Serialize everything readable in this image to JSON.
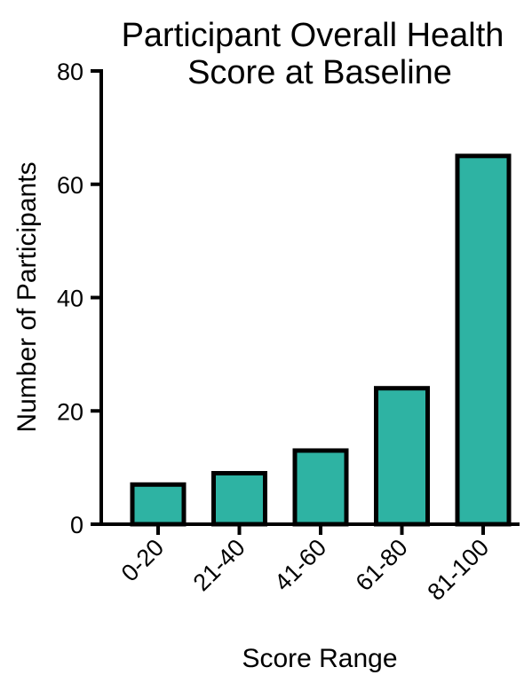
{
  "chart_data": {
    "type": "bar",
    "title_lines": [
      "Participant Overall Health",
      "Score at Baseline"
    ],
    "xlabel": "Score Range",
    "ylabel": "Number of Participants",
    "categories": [
      "0-20",
      "21-40",
      "41-60",
      "61-80",
      "81-100"
    ],
    "values": [
      7,
      9,
      13,
      24,
      65
    ],
    "ylim": [
      0,
      80
    ],
    "yticks": [
      0,
      20,
      40,
      60,
      80
    ],
    "grid": false,
    "legend": "none",
    "bar_color": "#2eb3a3",
    "bar_edge_color": "#000000"
  }
}
